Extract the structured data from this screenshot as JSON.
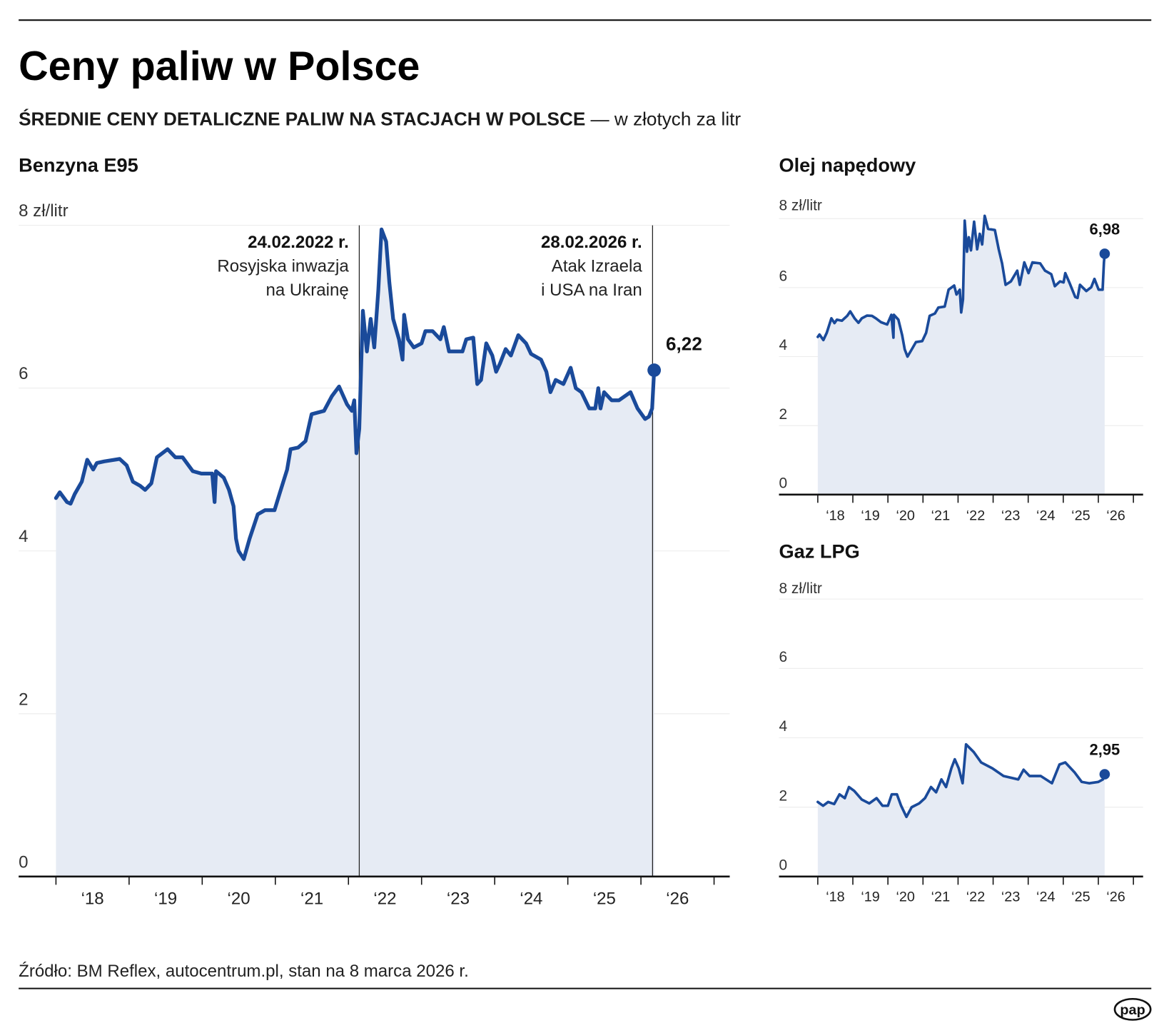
{
  "header": {
    "title": "Ceny paliw w Polsce",
    "subtitle_bold": "ŚREDNIE CENY DETALICZNE PALIW NA STACJACH W POLSCE",
    "subtitle_rest": " — w złotych za litr"
  },
  "footer": {
    "source": "Źródło: BM Reflex, autocentrum.pl, stan na 8 marca 2026 r.",
    "logo_text": "pap"
  },
  "colors": {
    "line": "#1a4a9a",
    "area": "#e6ebf4"
  },
  "chart_data": [
    {
      "type": "area",
      "title": "Benzyna E95",
      "ylabel": "zł/litr",
      "y_top_label": "8 zł/litr",
      "ylim": [
        0,
        8
      ],
      "y_ticks": [
        "0",
        "2",
        "4",
        "6"
      ],
      "x_tick_labels": [
        "‘18",
        "‘19",
        "‘20",
        "‘21",
        "‘22",
        "‘23",
        "‘24",
        "‘25",
        "‘26"
      ],
      "xlim": [
        "2018-01-01",
        "2027-01-01"
      ],
      "grid": true,
      "last_label": "6,22",
      "annotations": [
        {
          "date": "2022-02-24",
          "title": "24.02.2022 r.",
          "lines": [
            "Rosyjska inwazja",
            "na Ukrainę"
          ]
        },
        {
          "date": "2026-02-28",
          "title": "28.02.2026 r.",
          "lines": [
            "Atak Izraela",
            "i USA na Iran"
          ]
        }
      ],
      "points": [
        [
          "2018-01-01",
          4.65
        ],
        [
          "2018-01-20",
          4.72
        ],
        [
          "2018-02-25",
          4.6
        ],
        [
          "2018-03-15",
          4.58
        ],
        [
          "2018-04-05",
          4.7
        ],
        [
          "2018-05-10",
          4.85
        ],
        [
          "2018-06-06",
          5.12
        ],
        [
          "2018-07-06",
          5.0
        ],
        [
          "2018-07-24",
          5.08
        ],
        [
          "2018-08-30",
          5.1
        ],
        [
          "2018-11-15",
          5.13
        ],
        [
          "2018-12-20",
          5.05
        ],
        [
          "2019-01-20",
          4.85
        ],
        [
          "2019-02-25",
          4.8
        ],
        [
          "2019-03-22",
          4.75
        ],
        [
          "2019-04-22",
          4.83
        ],
        [
          "2019-05-20",
          5.15
        ],
        [
          "2019-07-12",
          5.25
        ],
        [
          "2019-08-20",
          5.15
        ],
        [
          "2019-09-25",
          5.15
        ],
        [
          "2019-11-15",
          4.98
        ],
        [
          "2019-12-28",
          4.95
        ],
        [
          "2020-02-20",
          4.95
        ],
        [
          "2020-03-03",
          4.6
        ],
        [
          "2020-03-10",
          4.98
        ],
        [
          "2020-04-18",
          4.9
        ],
        [
          "2020-05-14",
          4.75
        ],
        [
          "2020-06-06",
          4.55
        ],
        [
          "2020-06-18",
          4.15
        ],
        [
          "2020-07-01",
          4.0
        ],
        [
          "2020-07-27",
          3.9
        ],
        [
          "2020-08-25",
          4.15
        ],
        [
          "2020-10-05",
          4.45
        ],
        [
          "2020-11-10",
          4.5
        ],
        [
          "2020-12-28",
          4.5
        ],
        [
          "2021-01-22",
          4.7
        ],
        [
          "2021-03-01",
          5.0
        ],
        [
          "2021-03-18",
          5.25
        ],
        [
          "2021-04-25",
          5.27
        ],
        [
          "2021-06-01",
          5.35
        ],
        [
          "2021-07-01",
          5.68
        ],
        [
          "2021-09-01",
          5.72
        ],
        [
          "2021-10-10",
          5.9
        ],
        [
          "2021-11-15",
          6.02
        ],
        [
          "2021-12-25",
          5.8
        ],
        [
          "2022-01-18",
          5.72
        ],
        [
          "2022-01-30",
          5.85
        ],
        [
          "2022-02-10",
          5.2
        ],
        [
          "2022-02-24",
          5.5
        ],
        [
          "2022-03-14",
          6.95
        ],
        [
          "2022-04-03",
          6.45
        ],
        [
          "2022-04-22",
          6.85
        ],
        [
          "2022-05-10",
          6.5
        ],
        [
          "2022-05-30",
          7.2
        ],
        [
          "2022-06-15",
          7.95
        ],
        [
          "2022-07-08",
          7.8
        ],
        [
          "2022-07-24",
          7.3
        ],
        [
          "2022-08-12",
          6.85
        ],
        [
          "2022-09-10",
          6.6
        ],
        [
          "2022-09-28",
          6.35
        ],
        [
          "2022-10-06",
          6.9
        ],
        [
          "2022-10-25",
          6.6
        ],
        [
          "2022-11-23",
          6.5
        ],
        [
          "2023-01-01",
          6.55
        ],
        [
          "2023-01-20",
          6.7
        ],
        [
          "2023-02-25",
          6.7
        ],
        [
          "2023-04-05",
          6.6
        ],
        [
          "2023-04-22",
          6.75
        ],
        [
          "2023-05-18",
          6.45
        ],
        [
          "2023-07-24",
          6.45
        ],
        [
          "2023-08-12",
          6.6
        ],
        [
          "2023-09-16",
          6.62
        ],
        [
          "2023-10-06",
          6.05
        ],
        [
          "2023-10-25",
          6.1
        ],
        [
          "2023-11-20",
          6.55
        ],
        [
          "2023-12-20",
          6.4
        ],
        [
          "2024-01-08",
          6.2
        ],
        [
          "2024-01-27",
          6.3
        ],
        [
          "2024-02-25",
          6.48
        ],
        [
          "2024-03-22",
          6.4
        ],
        [
          "2024-04-28",
          6.65
        ],
        [
          "2024-06-06",
          6.55
        ],
        [
          "2024-07-01",
          6.42
        ],
        [
          "2024-08-20",
          6.35
        ],
        [
          "2024-09-16",
          6.2
        ],
        [
          "2024-10-06",
          5.95
        ],
        [
          "2024-11-01",
          6.1
        ],
        [
          "2024-12-10",
          6.05
        ],
        [
          "2025-01-15",
          6.25
        ],
        [
          "2025-02-10",
          6.0
        ],
        [
          "2025-03-10",
          5.95
        ],
        [
          "2025-04-18",
          5.75
        ],
        [
          "2025-05-18",
          5.75
        ],
        [
          "2025-06-02",
          6.0
        ],
        [
          "2025-06-13",
          5.75
        ],
        [
          "2025-07-01",
          5.95
        ],
        [
          "2025-08-08",
          5.85
        ],
        [
          "2025-09-13",
          5.85
        ],
        [
          "2025-11-10",
          5.95
        ],
        [
          "2025-12-15",
          5.75
        ],
        [
          "2026-01-22",
          5.62
        ],
        [
          "2026-02-10",
          5.65
        ],
        [
          "2026-02-26",
          5.75
        ],
        [
          "2026-03-08",
          6.22
        ]
      ]
    },
    {
      "type": "area",
      "title": "Olej napędowy",
      "ylabel": "zł/litr",
      "y_top_label": "8 zł/litr",
      "ylim": [
        0,
        8
      ],
      "y_ticks": [
        "0",
        "2",
        "4",
        "6"
      ],
      "x_tick_labels": [
        "‘18",
        "‘19",
        "‘20",
        "‘21",
        "‘22",
        "‘23",
        "‘24",
        "‘25",
        "‘26"
      ],
      "xlim": [
        "2018-01-01",
        "2027-01-01"
      ],
      "grid": true,
      "last_label": "6,98",
      "points": [
        [
          "2018-01-01",
          4.57
        ],
        [
          "2018-01-19",
          4.64
        ],
        [
          "2018-02-28",
          4.48
        ],
        [
          "2018-04-04",
          4.69
        ],
        [
          "2018-05-22",
          5.11
        ],
        [
          "2018-06-24",
          4.97
        ],
        [
          "2018-07-19",
          5.07
        ],
        [
          "2018-09-09",
          5.04
        ],
        [
          "2018-11-03",
          5.18
        ],
        [
          "2018-12-05",
          5.31
        ],
        [
          "2019-01-19",
          5.11
        ],
        [
          "2019-02-28",
          4.98
        ],
        [
          "2019-04-04",
          5.11
        ],
        [
          "2019-05-29",
          5.19
        ],
        [
          "2019-07-19",
          5.18
        ],
        [
          "2019-08-29",
          5.11
        ],
        [
          "2019-10-19",
          5.0
        ],
        [
          "2019-12-24",
          4.93
        ],
        [
          "2020-02-06",
          5.21
        ],
        [
          "2020-02-28",
          4.55
        ],
        [
          "2020-03-03",
          5.21
        ],
        [
          "2020-04-19",
          5.07
        ],
        [
          "2020-05-29",
          4.62
        ],
        [
          "2020-06-24",
          4.21
        ],
        [
          "2020-07-23",
          4.0
        ],
        [
          "2020-08-29",
          4.17
        ],
        [
          "2020-10-19",
          4.42
        ],
        [
          "2020-12-24",
          4.45
        ],
        [
          "2021-02-03",
          4.69
        ],
        [
          "2021-03-11",
          5.18
        ],
        [
          "2021-05-05",
          5.25
        ],
        [
          "2021-06-10",
          5.42
        ],
        [
          "2021-08-15",
          5.45
        ],
        [
          "2021-09-24",
          5.94
        ],
        [
          "2021-11-22",
          6.06
        ],
        [
          "2021-12-16",
          5.8
        ],
        [
          "2022-01-19",
          5.94
        ],
        [
          "2022-02-03",
          5.28
        ],
        [
          "2022-02-21",
          5.66
        ],
        [
          "2022-03-11",
          7.94
        ],
        [
          "2022-04-04",
          7.04
        ],
        [
          "2022-04-23",
          7.46
        ],
        [
          "2022-05-15",
          7.08
        ],
        [
          "2022-06-17",
          7.91
        ],
        [
          "2022-07-19",
          7.11
        ],
        [
          "2022-08-15",
          7.56
        ],
        [
          "2022-09-09",
          7.25
        ],
        [
          "2022-10-05",
          8.08
        ],
        [
          "2022-11-10",
          7.7
        ],
        [
          "2023-01-19",
          7.67
        ],
        [
          "2023-02-28",
          7.11
        ],
        [
          "2023-04-04",
          6.7
        ],
        [
          "2023-05-11",
          6.08
        ],
        [
          "2023-07-05",
          6.18
        ],
        [
          "2023-09-09",
          6.49
        ],
        [
          "2023-10-05",
          6.08
        ],
        [
          "2023-11-22",
          6.73
        ],
        [
          "2024-01-04",
          6.42
        ],
        [
          "2024-02-14",
          6.73
        ],
        [
          "2024-05-05",
          6.7
        ],
        [
          "2024-06-24",
          6.49
        ],
        [
          "2024-08-29",
          6.39
        ],
        [
          "2024-10-05",
          6.04
        ],
        [
          "2024-11-28",
          6.18
        ],
        [
          "2025-01-04",
          6.15
        ],
        [
          "2025-01-22",
          6.42
        ],
        [
          "2025-03-11",
          6.11
        ],
        [
          "2025-05-05",
          5.73
        ],
        [
          "2025-05-29",
          5.7
        ],
        [
          "2025-06-24",
          6.08
        ],
        [
          "2025-08-29",
          5.9
        ],
        [
          "2025-10-19",
          6.01
        ],
        [
          "2025-11-22",
          6.25
        ],
        [
          "2026-01-04",
          5.94
        ],
        [
          "2026-02-14",
          5.94
        ],
        [
          "2026-02-28",
          6.73
        ],
        [
          "2026-03-08",
          6.98
        ]
      ]
    },
    {
      "type": "area",
      "title": "Gaz LPG",
      "ylabel": "zł/litr",
      "y_top_label": "8 zł/litr",
      "ylim": [
        0,
        8
      ],
      "y_ticks": [
        "0",
        "2",
        "4",
        "6"
      ],
      "x_tick_labels": [
        "‘18",
        "‘19",
        "‘20",
        "‘21",
        "‘22",
        "‘23",
        "‘24",
        "‘25",
        "‘26"
      ],
      "xlim": [
        "2018-01-01",
        "2027-01-01"
      ],
      "grid": true,
      "last_label": "2,95",
      "points": [
        [
          "2018-01-01",
          2.15
        ],
        [
          "2018-02-25",
          2.04
        ],
        [
          "2018-04-19",
          2.15
        ],
        [
          "2018-06-21",
          2.09
        ],
        [
          "2018-08-15",
          2.37
        ],
        [
          "2018-10-09",
          2.26
        ],
        [
          "2018-11-22",
          2.58
        ],
        [
          "2019-01-15",
          2.47
        ],
        [
          "2019-04-04",
          2.22
        ],
        [
          "2019-06-21",
          2.11
        ],
        [
          "2019-09-05",
          2.26
        ],
        [
          "2019-11-06",
          2.04
        ],
        [
          "2020-01-01",
          2.04
        ],
        [
          "2020-02-10",
          2.37
        ],
        [
          "2020-04-04",
          2.37
        ],
        [
          "2020-05-18",
          2.04
        ],
        [
          "2020-07-12",
          1.72
        ],
        [
          "2020-09-05",
          2.0
        ],
        [
          "2020-11-22",
          2.11
        ],
        [
          "2021-01-22",
          2.26
        ],
        [
          "2021-03-25",
          2.58
        ],
        [
          "2021-05-18",
          2.43
        ],
        [
          "2021-07-12",
          2.8
        ],
        [
          "2021-08-29",
          2.58
        ],
        [
          "2021-10-23",
          3.12
        ],
        [
          "2021-11-28",
          3.38
        ],
        [
          "2022-01-08",
          3.12
        ],
        [
          "2022-02-17",
          2.69
        ],
        [
          "2022-03-25",
          3.81
        ],
        [
          "2022-06-13",
          3.59
        ],
        [
          "2022-08-29",
          3.29
        ],
        [
          "2022-12-24",
          3.12
        ],
        [
          "2023-04-19",
          2.9
        ],
        [
          "2023-09-20",
          2.8
        ],
        [
          "2023-11-14",
          3.08
        ],
        [
          "2024-01-15",
          2.9
        ],
        [
          "2024-05-11",
          2.9
        ],
        [
          "2024-09-05",
          2.69
        ],
        [
          "2024-11-22",
          3.23
        ],
        [
          "2025-01-22",
          3.29
        ],
        [
          "2025-04-27",
          3.01
        ],
        [
          "2025-07-12",
          2.73
        ],
        [
          "2025-09-27",
          2.69
        ],
        [
          "2026-01-01",
          2.73
        ],
        [
          "2026-02-17",
          2.8
        ],
        [
          "2026-03-08",
          2.95
        ]
      ]
    }
  ]
}
